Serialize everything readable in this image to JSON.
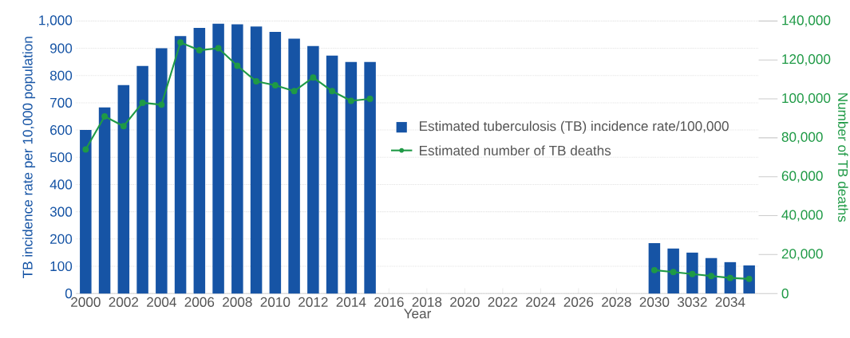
{
  "chart_data": {
    "type": "bar",
    "xlabel": "Year",
    "ylabel": "TB incidence rate per 10,000 population",
    "y2label": "Number of TB deaths",
    "categories": [
      "2000",
      null,
      "2002",
      null,
      "2004",
      null,
      "2006",
      null,
      "2008",
      null,
      "2010",
      null,
      "2012",
      null,
      "2014",
      null,
      "2016",
      null,
      "2018",
      null,
      "2020",
      null,
      "2022",
      null,
      "2024",
      null,
      "2026",
      null,
      "2028",
      null,
      "2030",
      null,
      "3032",
      null,
      "2034",
      null
    ],
    "series": [
      {
        "name": "Estimated tuberculosis (TB) incidence rate/100,000",
        "color": "#1654a5",
        "values": [
          600,
          683,
          765,
          835,
          900,
          945,
          975,
          990,
          988,
          980,
          960,
          935,
          908,
          873,
          850,
          850,
          null,
          null,
          null,
          null,
          null,
          null,
          null,
          null,
          null,
          null,
          null,
          null,
          null,
          null,
          185,
          165,
          150,
          130,
          115,
          103
        ]
      },
      {
        "name": "Estimated number of TB deaths",
        "type": "line",
        "axis": "y2",
        "color": "#1f9a46",
        "marker": "circle",
        "values": [
          74000,
          91000,
          86000,
          98000,
          97000,
          129000,
          125000,
          126000,
          117000,
          109000,
          107000,
          104000,
          111000,
          104000,
          99000,
          100000,
          null,
          null,
          null,
          null,
          null,
          null,
          null,
          null,
          null,
          null,
          null,
          null,
          null,
          null,
          12000,
          11000,
          10000,
          9000,
          8000,
          7500
        ]
      }
    ],
    "ylim": [
      0,
      1000
    ],
    "yticks": [
      0,
      100,
      200,
      300,
      400,
      500,
      600,
      700,
      800,
      900,
      {
        "value": 1000,
        "label": "1,000"
      }
    ],
    "y2lim": [
      0,
      140000
    ],
    "y2ticks": [
      0,
      {
        "value": 20000,
        "label": "20,000"
      },
      {
        "value": 40000,
        "label": "40,000"
      },
      {
        "value": 60000,
        "label": "60,000"
      },
      {
        "value": 80000,
        "label": "80,000"
      },
      {
        "value": 100000,
        "label": "100,000"
      },
      {
        "value": 120000,
        "label": "120,000"
      },
      {
        "value": 140000,
        "label": "140,000"
      }
    ],
    "grid": "y",
    "legend": "right"
  }
}
